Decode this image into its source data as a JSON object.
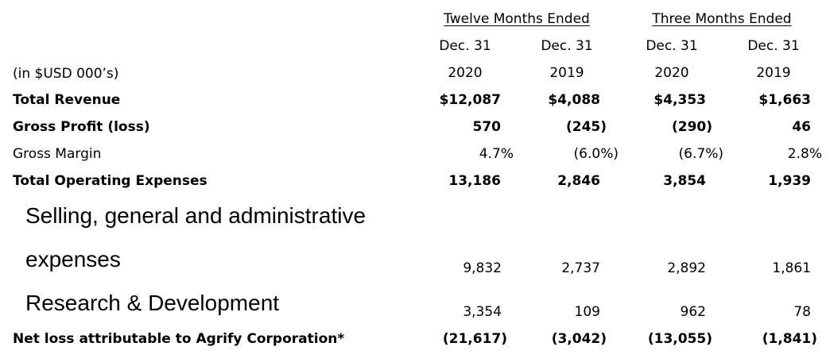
{
  "header": {
    "group_twelve": "Twelve Months Ended",
    "group_three": "Three Months Ended",
    "col_dates": [
      "Dec. 31",
      "Dec. 31",
      "Dec. 31",
      "Dec. 31"
    ],
    "col_years": [
      "2020",
      "2019",
      "2020",
      "2019"
    ],
    "units_label": "(in $USD 000’s)"
  },
  "rows": [
    {
      "label": "Total Revenue",
      "values": [
        "$12,087",
        "$4,088",
        "$4,353",
        "$1,663"
      ]
    },
    {
      "label": "Gross Profit (loss)",
      "values": [
        "570",
        "(245)",
        "(290)",
        "46"
      ]
    },
    {
      "label": "Gross Margin",
      "values": [
        "4.7%",
        "(6.0%)",
        "(6.7%)",
        "2.8%"
      ]
    },
    {
      "label": "Total Operating Expenses",
      "values": [
        "13,186",
        "2,846",
        "3,854",
        "1,939"
      ]
    },
    {
      "label_line1": "Selling, general and administrative",
      "label_line2": "expenses",
      "values": [
        "9,832",
        "2,737",
        "2,892",
        "1,861"
      ]
    },
    {
      "label": "Research & Development",
      "values": [
        "3,354",
        "109",
        "962",
        "78"
      ]
    },
    {
      "label": "Net loss attributable to Agrify Corporation*",
      "values": [
        "(21,617)",
        "(3,042)",
        "(13,055)",
        "(1,841)"
      ]
    }
  ]
}
